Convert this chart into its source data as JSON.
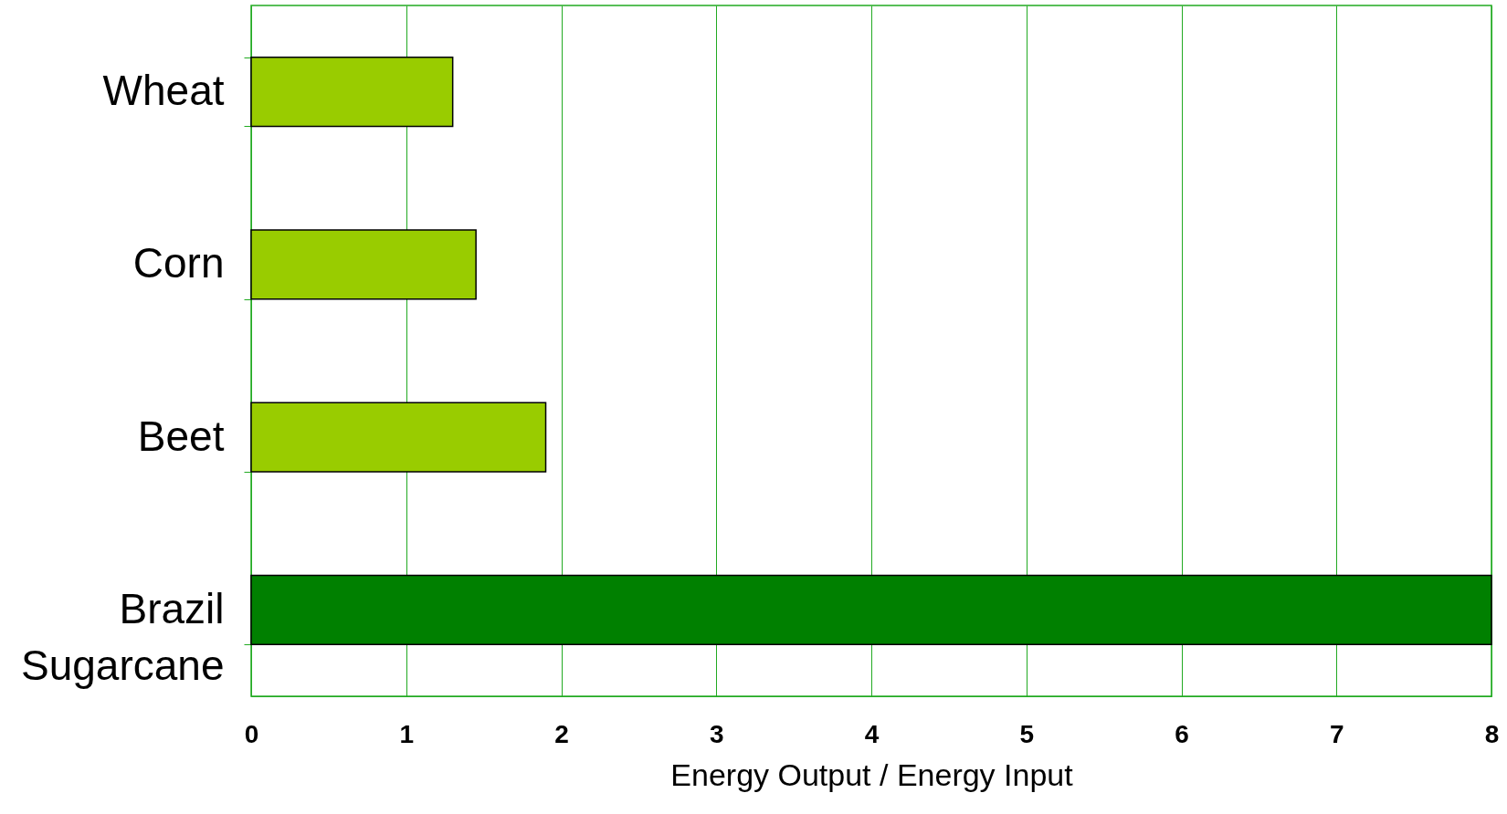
{
  "chart_data": {
    "type": "bar",
    "orientation": "horizontal",
    "categories": [
      "Wheat",
      "Corn",
      "Beet",
      "Brazil Sugarcane"
    ],
    "values": [
      1.3,
      1.45,
      1.9,
      8
    ],
    "colors": [
      "#99cc00",
      "#99cc00",
      "#99cc00",
      "#008000"
    ],
    "xlabel": "Energy Output / Energy Input",
    "xlim": [
      0,
      8
    ],
    "xticks": [
      0,
      1,
      2,
      3,
      4,
      5,
      6,
      7,
      8
    ],
    "grid": "x"
  }
}
